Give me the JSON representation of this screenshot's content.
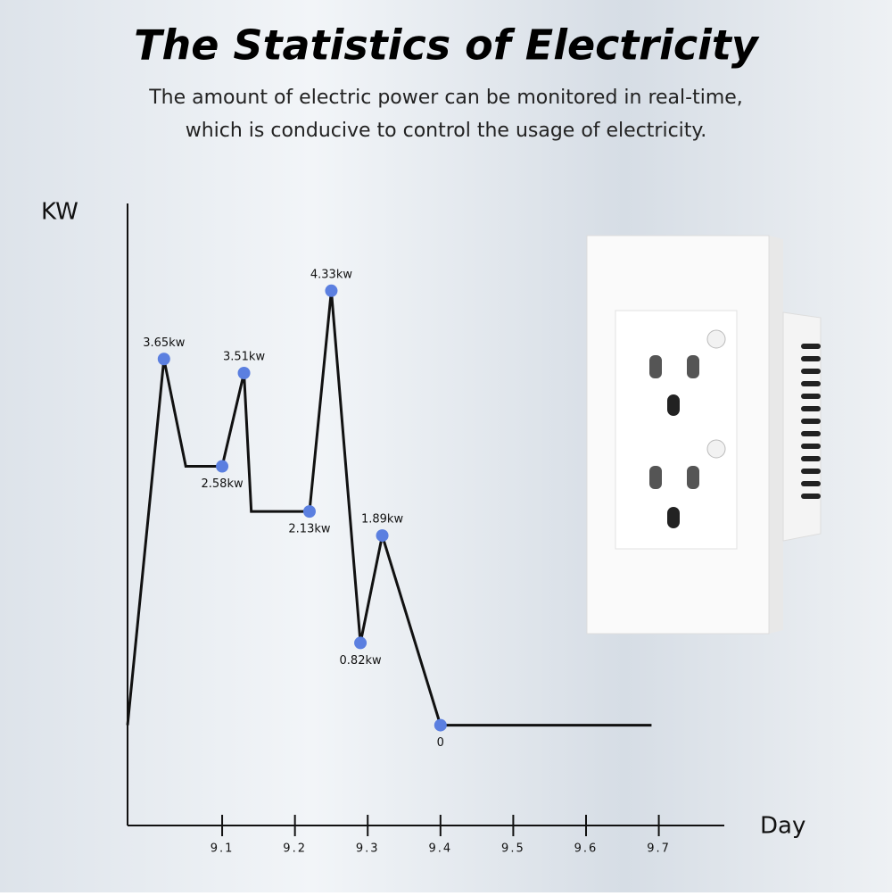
{
  "title": "The Statistics of Electricity",
  "subtitle": [
    "The amount of electric power can be monitored in real-time,",
    "which is conducive to control the usage of electricity."
  ],
  "chart_data": {
    "type": "line",
    "y_label": "KW",
    "x_label": "Day",
    "x": [
      8.97,
      9.02,
      9.05,
      9.1,
      9.13,
      9.14,
      9.22,
      9.25,
      9.29,
      9.32,
      9.4,
      9.69
    ],
    "values": [
      0,
      3.65,
      2.58,
      2.58,
      3.51,
      2.13,
      2.13,
      4.33,
      0.82,
      1.89,
      0,
      0
    ],
    "value_labels": [
      null,
      "3.65kw",
      null,
      "2.58kw",
      "3.51kw",
      null,
      "2.13kw",
      "4.33kw",
      "0.82kw",
      "1.89kw",
      "0",
      null
    ],
    "color": "#111111",
    "marker_color": "#5b7fe0",
    "xlim": [
      8.97,
      9.79
    ],
    "xticks": [
      9.1,
      9.2,
      9.3,
      9.4,
      9.5,
      9.6,
      9.7
    ],
    "ylim": [
      -1,
      5.2
    ]
  }
}
